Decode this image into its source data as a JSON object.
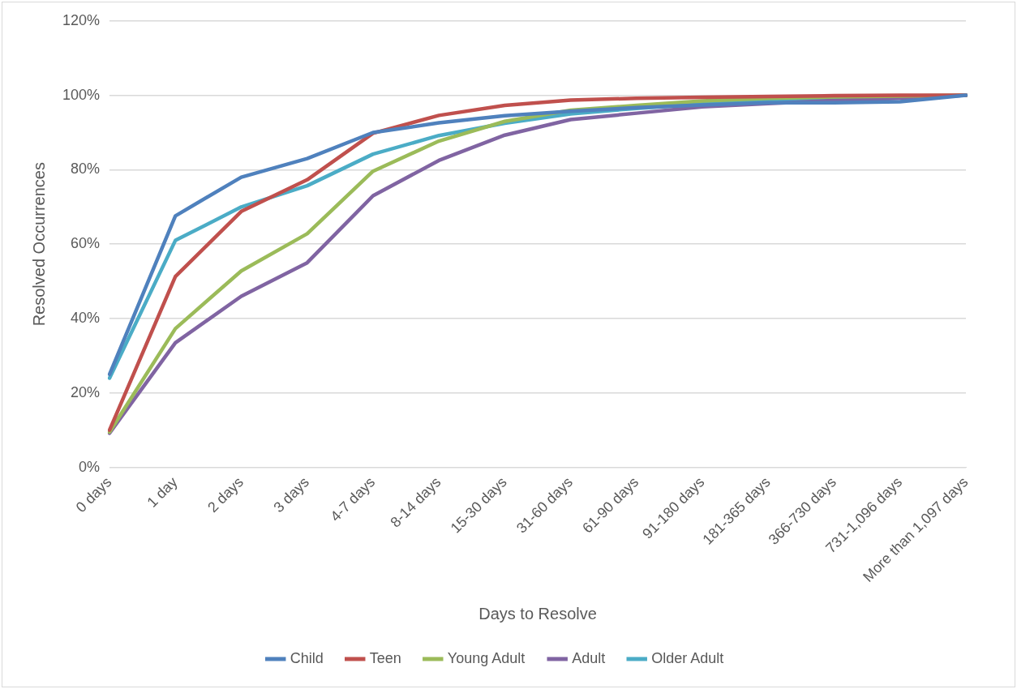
{
  "chart_data": {
    "type": "line",
    "xlabel": "Days to Resolve",
    "ylabel": "Resolved Occurrences",
    "categories": [
      "0 days",
      "1 day",
      "2 days",
      "3 days",
      "4-7 days",
      "8-14 days",
      "15-30 days",
      "31-60 days",
      "61-90 days",
      "91-180 days",
      "181-365 days",
      "366-730 days",
      "731-1,096 days",
      "More than 1,097 days"
    ],
    "series": [
      {
        "name": "Child",
        "color": "#4f81bd",
        "values": [
          25,
          67.6,
          78,
          83,
          90,
          92.6,
          94.5,
          95.7,
          96.7,
          97.4,
          98,
          98,
          98.3,
          100
        ]
      },
      {
        "name": "Teen",
        "color": "#c0504d",
        "values": [
          10,
          51.3,
          68.8,
          77.3,
          89.8,
          94.6,
          97.3,
          98.7,
          99.2,
          99.5,
          99.7,
          99.9,
          100,
          100
        ]
      },
      {
        "name": "Young Adult",
        "color": "#9bbb59",
        "values": [
          9.5,
          37.3,
          52.8,
          62.8,
          79.6,
          87.7,
          93,
          96,
          97.3,
          98.5,
          99.2,
          99.6,
          99.8,
          100
        ]
      },
      {
        "name": "Adult",
        "color": "#8064a2",
        "values": [
          9.2,
          33.5,
          46,
          55,
          73,
          82.5,
          89.3,
          93.5,
          95.2,
          96.9,
          97.8,
          98.6,
          99.2,
          100
        ]
      },
      {
        "name": "Older Adult",
        "color": "#4bacc6",
        "values": [
          24,
          61,
          70,
          75.7,
          84.2,
          89.2,
          92.5,
          95,
          96.5,
          97.7,
          98.4,
          98.9,
          99.3,
          100
        ]
      }
    ],
    "ylim": [
      0,
      120
    ],
    "yticks": [
      {
        "value": 0,
        "label": "0%"
      },
      {
        "value": 20,
        "label": "20%"
      },
      {
        "value": 40,
        "label": "40%"
      },
      {
        "value": 60,
        "label": "60%"
      },
      {
        "value": 80,
        "label": "80%"
      },
      {
        "value": 100,
        "label": "100%"
      },
      {
        "value": 120,
        "label": "120%"
      }
    ],
    "grid": "y",
    "legend": "bottom",
    "marker": "none",
    "line_style": "solid"
  }
}
